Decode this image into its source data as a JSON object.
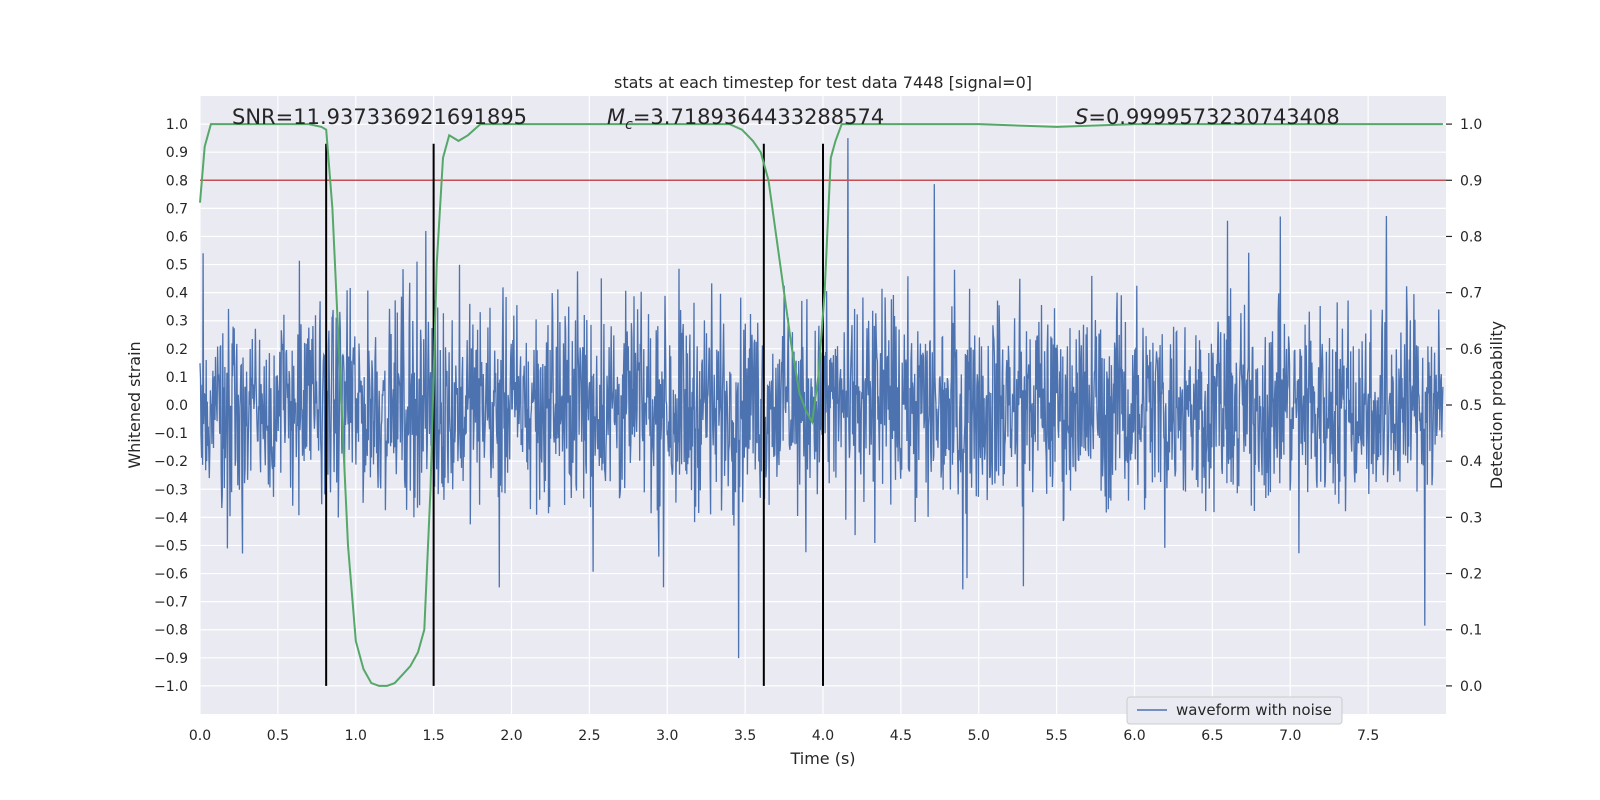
{
  "chart_data": {
    "type": "line",
    "title": "stats at each timestep for test data 7448 [signal=0]",
    "xlabel": "Time (s)",
    "ylabel": "Whitened strain",
    "ylabel_right": "Detection probability",
    "xlim": [
      0.0,
      8.0
    ],
    "ylim": [
      -1.1,
      1.1
    ],
    "ylim_right": [
      -0.05,
      1.05
    ],
    "xticks": [
      "0.0",
      "0.5",
      "1.0",
      "1.5",
      "2.0",
      "2.5",
      "3.0",
      "3.5",
      "4.0",
      "4.5",
      "5.0",
      "5.5",
      "6.0",
      "6.5",
      "7.0",
      "7.5"
    ],
    "yticks": [
      "1.0",
      "0.9",
      "0.8",
      "0.7",
      "0.6",
      "0.5",
      "0.4",
      "0.3",
      "0.2",
      "0.1",
      "0.0",
      "−0.1",
      "−0.2",
      "−0.3",
      "−0.4",
      "−0.5",
      "−0.6",
      "−0.7",
      "−0.8",
      "−0.9",
      "−1.0"
    ],
    "yticks_right": [
      "1.0",
      "0.9",
      "0.8",
      "0.7",
      "0.6",
      "0.5",
      "0.4",
      "0.3",
      "0.2",
      "0.1",
      "0.0"
    ],
    "annotations": {
      "snr": "SNR=11.937336921691895",
      "mc_label": "M",
      "mc_sub": "c",
      "mc_value": "=3.7189364433288574",
      "s_label": "S",
      "s_value": "=0.9999573230743408"
    },
    "legend": {
      "label": "waveform with noise",
      "placement": "lower-right"
    },
    "threshold_right": 0.9,
    "vlines": [
      0.81,
      1.5,
      3.62,
      4.0
    ],
    "series": [
      {
        "name": "waveform with noise",
        "color": "#4c72b0",
        "kind": "noise",
        "seed": 7448,
        "x_end": 7.98,
        "band": 0.28,
        "max_peak": 0.95,
        "min_peak": -1.0
      },
      {
        "name": "detection probability",
        "color": "#55a868",
        "axis": "right",
        "x": [
          0.0,
          0.03,
          0.07,
          0.12,
          0.2,
          0.3,
          0.5,
          0.7,
          0.78,
          0.81,
          0.85,
          0.9,
          0.95,
          1.0,
          1.05,
          1.1,
          1.15,
          1.2,
          1.25,
          1.3,
          1.35,
          1.4,
          1.44,
          1.48,
          1.52,
          1.56,
          1.6,
          1.66,
          1.72,
          1.8,
          2.0,
          2.4,
          2.8,
          3.2,
          3.4,
          3.48,
          3.55,
          3.6,
          3.65,
          3.7,
          3.75,
          3.8,
          3.85,
          3.89,
          3.93,
          3.97,
          4.01,
          4.05,
          4.08,
          4.12,
          4.2,
          4.5,
          5.0,
          5.5,
          6.0,
          6.5,
          7.0,
          7.5,
          7.98
        ],
        "y": [
          0.86,
          0.96,
          1.0,
          1.0,
          1.0,
          1.0,
          1.0,
          1.0,
          0.995,
          0.99,
          0.85,
          0.55,
          0.25,
          0.08,
          0.03,
          0.005,
          0.0,
          0.0,
          0.005,
          0.02,
          0.035,
          0.06,
          0.1,
          0.35,
          0.75,
          0.94,
          0.98,
          0.97,
          0.98,
          1.0,
          1.0,
          1.0,
          1.0,
          1.0,
          1.0,
          0.99,
          0.97,
          0.95,
          0.9,
          0.8,
          0.7,
          0.6,
          0.52,
          0.49,
          0.47,
          0.55,
          0.7,
          0.94,
          0.97,
          1.0,
          1.0,
          1.0,
          1.0,
          0.995,
          1.0,
          1.0,
          1.0,
          1.0,
          1.0
        ]
      }
    ]
  },
  "colors": {
    "plot_background": "#eaeaf2",
    "grid": "#ffffff",
    "threshold": "#c44e52",
    "vline": "#000000",
    "legend_border": "#cccccc"
  }
}
